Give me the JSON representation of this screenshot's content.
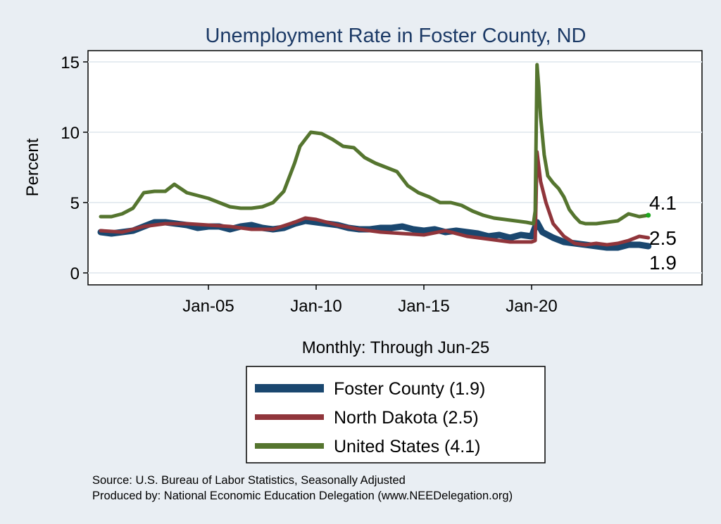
{
  "chart_data": {
    "type": "line",
    "title": "Unemployment Rate in Foster  County, ND",
    "xlabel": "Monthly: Through Jun-25",
    "ylabel": "Percent",
    "x_ticks": [
      "Jan-05",
      "Jan-10",
      "Jan-15",
      "Jan-20"
    ],
    "y_ticks": [
      "0",
      "5",
      "10",
      "15"
    ],
    "ylim": [
      0,
      15
    ],
    "xlim": [
      "Jan-00",
      "Jun-25"
    ],
    "grid": true,
    "legend_position": "bottom",
    "end_labels": [
      "4.1",
      "2.5",
      "1.9"
    ],
    "series": [
      {
        "name": "Foster  County (1.9)",
        "color": "#1a476f",
        "x": [
          "2000-01",
          "2000-07",
          "2001-01",
          "2001-07",
          "2002-01",
          "2002-07",
          "2003-01",
          "2003-07",
          "2004-01",
          "2004-07",
          "2005-01",
          "2005-07",
          "2006-01",
          "2006-07",
          "2007-01",
          "2007-07",
          "2008-01",
          "2008-07",
          "2009-01",
          "2009-07",
          "2010-01",
          "2010-07",
          "2011-01",
          "2011-07",
          "2012-01",
          "2012-07",
          "2013-01",
          "2013-07",
          "2014-01",
          "2014-07",
          "2015-01",
          "2015-07",
          "2016-01",
          "2016-07",
          "2017-01",
          "2017-07",
          "2018-01",
          "2018-07",
          "2019-01",
          "2019-07",
          "2020-01",
          "2020-04",
          "2020-07",
          "2021-01",
          "2021-07",
          "2022-01",
          "2022-07",
          "2023-01",
          "2023-07",
          "2024-01",
          "2024-07",
          "2025-01",
          "2025-06"
        ],
        "values": [
          2.9,
          2.8,
          2.9,
          3.0,
          3.3,
          3.6,
          3.6,
          3.5,
          3.4,
          3.2,
          3.3,
          3.3,
          3.1,
          3.3,
          3.4,
          3.2,
          3.1,
          3.2,
          3.5,
          3.7,
          3.6,
          3.5,
          3.4,
          3.2,
          3.1,
          3.1,
          3.2,
          3.2,
          3.3,
          3.1,
          3.0,
          3.1,
          2.9,
          3.0,
          2.9,
          2.8,
          2.6,
          2.7,
          2.5,
          2.7,
          2.6,
          3.6,
          2.9,
          2.5,
          2.2,
          2.1,
          2.0,
          1.9,
          1.8,
          1.8,
          2.0,
          2.0,
          1.9
        ]
      },
      {
        "name": "North Dakota (2.5)",
        "color": "#90353b",
        "x": [
          "2000-01",
          "2001-01",
          "2002-01",
          "2003-01",
          "2004-01",
          "2005-01",
          "2006-01",
          "2007-01",
          "2008-01",
          "2009-01",
          "2009-07",
          "2010-01",
          "2010-07",
          "2011-01",
          "2012-01",
          "2013-01",
          "2014-01",
          "2015-01",
          "2016-01",
          "2017-01",
          "2018-01",
          "2019-01",
          "2020-01",
          "2020-03",
          "2020-04",
          "2020-06",
          "2020-09",
          "2021-01",
          "2021-07",
          "2022-01",
          "2022-07",
          "2023-01",
          "2023-07",
          "2024-01",
          "2024-07",
          "2025-01",
          "2025-06"
        ],
        "values": [
          3.0,
          2.9,
          3.3,
          3.5,
          3.5,
          3.4,
          3.3,
          3.1,
          3.1,
          3.6,
          3.9,
          3.8,
          3.6,
          3.4,
          3.1,
          2.9,
          2.8,
          2.7,
          3.0,
          2.6,
          2.4,
          2.2,
          2.2,
          2.3,
          8.6,
          6.5,
          5.0,
          3.5,
          2.6,
          2.1,
          2.0,
          2.1,
          2.0,
          2.1,
          2.3,
          2.6,
          2.5
        ]
      },
      {
        "name": "United States (4.1)",
        "color": "#55752f",
        "x": [
          "2000-01",
          "2000-07",
          "2001-01",
          "2001-07",
          "2002-01",
          "2002-07",
          "2003-01",
          "2003-06",
          "2004-01",
          "2004-07",
          "2005-01",
          "2005-07",
          "2006-01",
          "2006-07",
          "2007-01",
          "2007-07",
          "2008-01",
          "2008-07",
          "2009-01",
          "2009-04",
          "2009-07",
          "2009-10",
          "2010-04",
          "2010-10",
          "2011-04",
          "2011-10",
          "2012-04",
          "2012-10",
          "2013-04",
          "2013-10",
          "2014-04",
          "2014-10",
          "2015-04",
          "2015-10",
          "2016-04",
          "2016-10",
          "2017-04",
          "2017-10",
          "2018-04",
          "2018-10",
          "2019-04",
          "2019-10",
          "2020-02",
          "2020-03",
          "2020-04",
          "2020-05",
          "2020-06",
          "2020-08",
          "2020-10",
          "2021-01",
          "2021-04",
          "2021-07",
          "2021-10",
          "2022-01",
          "2022-04",
          "2022-07",
          "2023-01",
          "2023-07",
          "2024-01",
          "2024-07",
          "2025-01",
          "2025-06"
        ],
        "values": [
          4.0,
          4.0,
          4.2,
          4.6,
          5.7,
          5.8,
          5.8,
          6.3,
          5.7,
          5.5,
          5.3,
          5.0,
          4.7,
          4.6,
          4.6,
          4.7,
          5.0,
          5.8,
          7.8,
          9.0,
          9.5,
          10.0,
          9.9,
          9.5,
          9.0,
          8.9,
          8.2,
          7.8,
          7.5,
          7.2,
          6.2,
          5.7,
          5.4,
          5.0,
          5.0,
          4.8,
          4.4,
          4.1,
          3.9,
          3.8,
          3.7,
          3.6,
          3.5,
          4.4,
          14.8,
          13.2,
          11.1,
          8.4,
          6.9,
          6.4,
          6.0,
          5.4,
          4.5,
          4.0,
          3.6,
          3.5,
          3.5,
          3.6,
          3.7,
          4.2,
          4.0,
          4.1
        ]
      }
    ]
  },
  "footer": {
    "source": "Source: U.S. Bureau of Labor Statistics, Seasonally Adjusted",
    "produced_by": "Produced by: National Economic Education Delegation (www.NEEDelegation.org)"
  }
}
